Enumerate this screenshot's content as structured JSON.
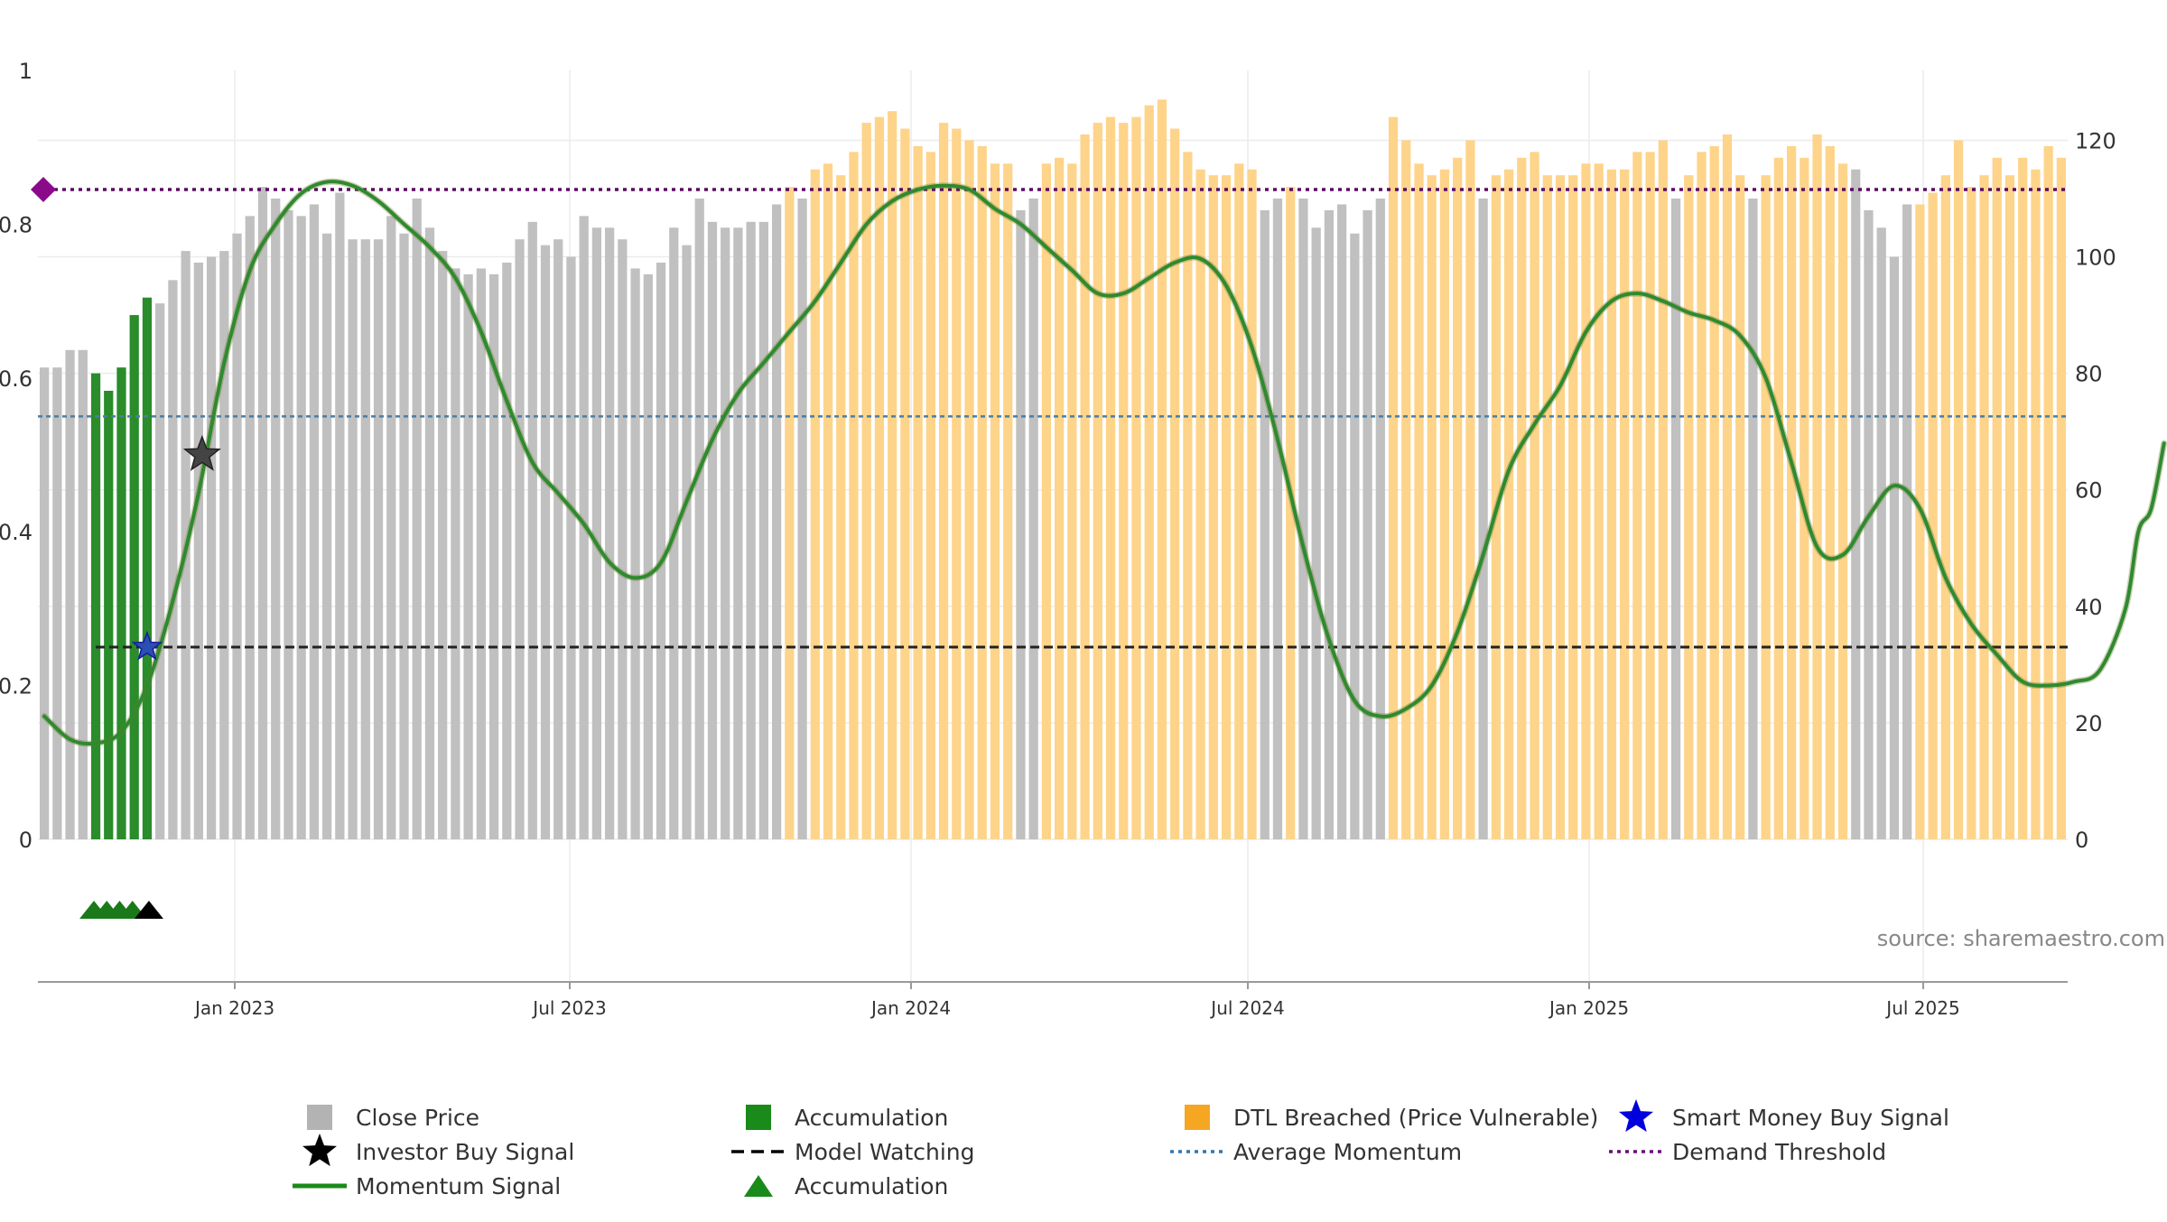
{
  "chart_data": {
    "type": "bar",
    "x_ticks": [
      "Jan 2023",
      "Jul 2023",
      "Jan 2024",
      "Jul 2024",
      "Jan 2025",
      "Jul 2025"
    ],
    "left_axis": {
      "ticks": [
        "0",
        "0.2",
        "0.4",
        "0.6",
        "0.8",
        "1"
      ],
      "ylim": [
        0,
        1
      ]
    },
    "right_axis": {
      "ticks": [
        "0",
        "20",
        "40",
        "60",
        "80",
        "100",
        "120"
      ],
      "ylim": [
        0,
        132
      ]
    },
    "close_price": [
      81,
      81,
      84,
      84,
      80,
      77,
      81,
      90,
      93,
      92,
      96,
      101,
      99,
      100,
      101,
      104,
      107,
      112,
      110,
      108,
      107,
      109,
      104,
      111,
      103,
      103,
      103,
      107,
      104,
      110,
      105,
      101,
      98,
      97,
      98,
      97,
      99,
      103,
      106,
      102,
      103,
      100,
      107,
      105,
      105,
      103,
      98,
      97,
      99,
      105,
      102,
      110,
      106,
      105,
      105,
      106,
      106,
      109,
      112,
      110,
      115,
      116,
      114,
      118,
      123,
      124,
      125,
      122,
      119,
      118,
      123,
      122,
      120,
      119,
      116,
      116,
      108,
      110,
      116,
      117,
      116,
      121,
      123,
      124,
      123,
      124,
      126,
      127,
      122,
      118,
      115,
      114,
      114,
      116,
      115,
      108,
      110,
      112,
      110,
      105,
      108,
      109,
      104,
      108,
      110,
      124,
      120,
      116,
      114,
      115,
      117,
      120,
      110,
      114,
      115,
      117,
      118,
      114,
      114,
      114,
      116,
      116,
      115,
      115,
      118,
      118,
      120,
      110,
      114,
      118,
      119,
      121,
      114,
      110,
      114,
      117,
      119,
      117,
      121,
      119,
      116,
      115,
      108,
      105,
      100,
      109,
      109,
      111,
      114,
      120,
      112,
      114,
      117,
      114,
      117,
      115,
      119,
      117
    ],
    "bar_kind": [
      "close",
      "close",
      "close",
      "close",
      "accumulation",
      "accumulation",
      "accumulation",
      "accumulation",
      "accumulation",
      "close",
      "close",
      "close",
      "close",
      "close",
      "close",
      "close",
      "close",
      "close",
      "close",
      "close",
      "close",
      "close",
      "close",
      "close",
      "close",
      "close",
      "close",
      "close",
      "close",
      "close",
      "close",
      "close",
      "close",
      "close",
      "close",
      "close",
      "close",
      "close",
      "close",
      "close",
      "close",
      "close",
      "close",
      "close",
      "close",
      "close",
      "close",
      "close",
      "close",
      "close",
      "close",
      "close",
      "close",
      "close",
      "close",
      "close",
      "close",
      "close",
      "dtl",
      "close",
      "dtl",
      "dtl",
      "dtl",
      "dtl",
      "dtl",
      "dtl",
      "dtl",
      "dtl",
      "dtl",
      "dtl",
      "dtl",
      "dtl",
      "dtl",
      "dtl",
      "dtl",
      "dtl",
      "close",
      "close",
      "dtl",
      "dtl",
      "dtl",
      "dtl",
      "dtl",
      "dtl",
      "dtl",
      "dtl",
      "dtl",
      "dtl",
      "dtl",
      "dtl",
      "dtl",
      "dtl",
      "dtl",
      "dtl",
      "dtl",
      "close",
      "close",
      "dtl",
      "close",
      "close",
      "close",
      "close",
      "close",
      "close",
      "close",
      "dtl",
      "dtl",
      "dtl",
      "dtl",
      "dtl",
      "dtl",
      "dtl",
      "close",
      "dtl",
      "dtl",
      "dtl",
      "dtl",
      "dtl",
      "dtl",
      "dtl",
      "dtl",
      "dtl",
      "dtl",
      "dtl",
      "dtl",
      "dtl",
      "dtl",
      "close",
      "dtl",
      "dtl",
      "dtl",
      "dtl",
      "dtl",
      "close",
      "dtl",
      "dtl",
      "dtl",
      "dtl",
      "dtl",
      "dtl",
      "dtl",
      "close",
      "close",
      "close",
      "close",
      "close",
      "dtl",
      "dtl",
      "dtl",
      "dtl",
      "dtl",
      "dtl",
      "dtl",
      "dtl",
      "dtl",
      "dtl",
      "dtl",
      "dtl"
    ],
    "momentum_signal": [
      [
        0,
        0.16
      ],
      [
        2,
        0.13
      ],
      [
        4,
        0.125
      ],
      [
        6,
        0.14
      ],
      [
        8,
        0.2
      ],
      [
        10,
        0.31
      ],
      [
        12,
        0.45
      ],
      [
        14,
        0.62
      ],
      [
        16,
        0.74
      ],
      [
        18,
        0.8
      ],
      [
        20,
        0.84
      ],
      [
        22,
        0.855
      ],
      [
        24,
        0.85
      ],
      [
        26,
        0.83
      ],
      [
        28,
        0.8
      ],
      [
        30,
        0.77
      ],
      [
        32,
        0.73
      ],
      [
        34,
        0.66
      ],
      [
        36,
        0.57
      ],
      [
        38,
        0.49
      ],
      [
        40,
        0.45
      ],
      [
        42,
        0.41
      ],
      [
        44,
        0.36
      ],
      [
        46,
        0.34
      ],
      [
        48,
        0.36
      ],
      [
        50,
        0.44
      ],
      [
        52,
        0.52
      ],
      [
        54,
        0.58
      ],
      [
        56,
        0.62
      ],
      [
        58,
        0.66
      ],
      [
        60,
        0.7
      ],
      [
        62,
        0.75
      ],
      [
        64,
        0.8
      ],
      [
        66,
        0.83
      ],
      [
        68,
        0.845
      ],
      [
        70,
        0.85
      ],
      [
        72,
        0.845
      ],
      [
        74,
        0.82
      ],
      [
        76,
        0.8
      ],
      [
        78,
        0.77
      ],
      [
        80,
        0.74
      ],
      [
        82,
        0.71
      ],
      [
        84,
        0.71
      ],
      [
        86,
        0.73
      ],
      [
        88,
        0.75
      ],
      [
        90,
        0.755
      ],
      [
        92,
        0.72
      ],
      [
        94,
        0.64
      ],
      [
        96,
        0.52
      ],
      [
        98,
        0.38
      ],
      [
        100,
        0.26
      ],
      [
        102,
        0.18
      ],
      [
        104,
        0.16
      ],
      [
        106,
        0.17
      ],
      [
        108,
        0.2
      ],
      [
        110,
        0.27
      ],
      [
        112,
        0.37
      ],
      [
        114,
        0.48
      ],
      [
        116,
        0.54
      ],
      [
        118,
        0.59
      ],
      [
        120,
        0.66
      ],
      [
        122,
        0.7
      ],
      [
        124,
        0.71
      ],
      [
        126,
        0.7
      ],
      [
        128,
        0.685
      ],
      [
        130,
        0.675
      ],
      [
        132,
        0.655
      ],
      [
        134,
        0.6
      ],
      [
        136,
        0.49
      ],
      [
        138,
        0.38
      ],
      [
        140,
        0.37
      ],
      [
        142,
        0.42
      ],
      [
        144,
        0.46
      ],
      [
        146,
        0.43
      ],
      [
        148,
        0.34
      ],
      [
        150,
        0.28
      ],
      [
        152,
        0.24
      ],
      [
        154,
        0.205
      ],
      [
        156,
        0.2
      ],
      [
        158,
        0.205
      ],
      [
        160,
        0.22
      ],
      [
        162,
        0.3
      ],
      [
        163,
        0.4
      ],
      [
        164,
        0.43
      ],
      [
        165,
        0.515
      ]
    ],
    "investor_buy_signal": [
      {
        "i": 12,
        "y": 0.5
      }
    ],
    "smart_money_buy_signal": [
      {
        "i": 8,
        "y": 0.25
      }
    ],
    "model_watching": {
      "y": 0.25,
      "from_i": 4,
      "to_i": 165
    },
    "average_momentum": {
      "y": 0.55
    },
    "demand_threshold": {
      "y": 0.845
    },
    "accumulation_markers": [
      4,
      5,
      6,
      7
    ],
    "investor_marker": [
      8
    ],
    "source_text": "source: sharemaestro.com",
    "legend": [
      {
        "label": "Close Price",
        "kind": "square",
        "color": "#b3b3b3"
      },
      {
        "label": "Accumulation",
        "kind": "square",
        "color": "#1a8a1a"
      },
      {
        "label": "DTL Breached (Price Vulnerable)",
        "kind": "square",
        "color": "#f5a623"
      },
      {
        "label": "Smart Money Buy Signal",
        "kind": "star",
        "color": "#0000dd"
      },
      {
        "label": "Investor Buy Signal",
        "kind": "star",
        "color": "#000000"
      },
      {
        "label": "Model Watching",
        "kind": "dash",
        "color": "#000000"
      },
      {
        "label": "Average Momentum",
        "kind": "dot",
        "color": "#2e77b4"
      },
      {
        "label": "Demand Threshold",
        "kind": "dot",
        "color": "#6a0d7a"
      },
      {
        "label": "Momentum Signal",
        "kind": "line",
        "color": "#1a8a1a"
      },
      {
        "label": "Accumulation",
        "kind": "triangle",
        "color": "#1a8a1a"
      }
    ],
    "colors": {
      "close": "#c0c0c0",
      "accumulation": "#2a8c2a",
      "dtl": "#fdd48a",
      "momentum": "#2f8a2f",
      "model_watching": "#222222",
      "average_momentum": "#4a7ea5",
      "demand_threshold": "#5a0a62",
      "grid": "#ececec",
      "axis_text": "#333333",
      "source_text": "#888888"
    }
  }
}
